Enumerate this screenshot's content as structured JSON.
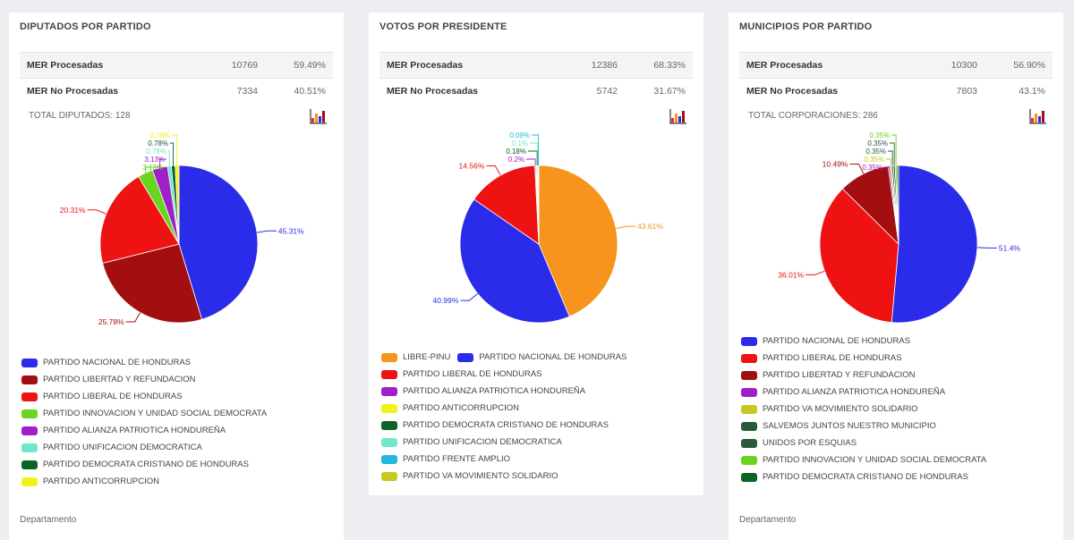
{
  "cards": [
    {
      "title": "DIPUTADOS POR PARTIDO",
      "mer": [
        {
          "label": "MER Procesadas",
          "count": "10769",
          "pct": "59.49%"
        },
        {
          "label": "MER No Procesadas",
          "count": "7334",
          "pct": "40.51%"
        }
      ],
      "total_label": "TOTAL DIPUTADOS: 128",
      "dept_label": "Departamento",
      "icon": "bar-chart-icon"
    },
    {
      "title": "VOTOS POR PRESIDENTE",
      "mer": [
        {
          "label": "MER Procesadas",
          "count": "12386",
          "pct": "68.33%"
        },
        {
          "label": "MER No Procesadas",
          "count": "5742",
          "pct": "31.67%"
        }
      ],
      "total_label": "",
      "dept_label": "",
      "icon": "bar-chart-icon"
    },
    {
      "title": "MUNICIPIOS POR PARTIDO",
      "mer": [
        {
          "label": "MER Procesadas",
          "count": "10300",
          "pct": "56.90%"
        },
        {
          "label": "MER No Procesadas",
          "count": "7803",
          "pct": "43.1%"
        }
      ],
      "total_label": "TOTAL CORPORACIONES: 286",
      "dept_label": "Departamento",
      "icon": "bar-chart-icon"
    }
  ],
  "chart_data": [
    {
      "type": "pie",
      "title": "",
      "slices": [
        {
          "name": "PARTIDO NACIONAL DE HONDURAS",
          "value": 45.31,
          "label": "45.31%",
          "color": "#2b2bea"
        },
        {
          "name": "PARTIDO LIBERTAD Y REFUNDACION",
          "value": 25.78,
          "label": "25.78%",
          "color": "#a30f10"
        },
        {
          "name": "PARTIDO LIBERAL DE HONDURAS",
          "value": 20.31,
          "label": "20.31%",
          "color": "#ee1212"
        },
        {
          "name": "PARTIDO INNOVACION Y UNIDAD SOCIAL DEMOCRATA",
          "value": 3.13,
          "label": "3.13%",
          "color": "#6ad41f"
        },
        {
          "name": "PARTIDO ALIANZA PATRIOTICA HONDUREÑA",
          "value": 3.13,
          "label": "3.13%",
          "color": "#a020c8"
        },
        {
          "name": "PARTIDO UNIFICACION DEMOCRATICA",
          "value": 0.78,
          "label": "0.78%",
          "color": "#6ee8c8"
        },
        {
          "name": "PARTIDO DEMOCRATA CRISTIANO DE HONDURAS",
          "value": 0.78,
          "label": "0.78%",
          "color": "#0c6424"
        },
        {
          "name": "PARTIDO ANTICORRUPCION",
          "value": 0.78,
          "label": "0.78%",
          "color": "#f2f21a"
        }
      ],
      "legend_layout": [
        [
          0
        ],
        [
          1
        ],
        [
          2
        ],
        [
          3
        ],
        [
          4
        ],
        [
          5
        ],
        [
          6
        ],
        [
          7
        ]
      ]
    },
    {
      "type": "pie",
      "title": "",
      "slices": [
        {
          "name": "LIBRE-PINU",
          "value": 43.61,
          "label": "43.61%",
          "color": "#f7941d"
        },
        {
          "name": "PARTIDO NACIONAL DE HONDURAS",
          "value": 40.99,
          "label": "40.99%",
          "color": "#2b2bea"
        },
        {
          "name": "PARTIDO LIBERAL DE HONDURAS",
          "value": 14.56,
          "label": "14.56%",
          "color": "#ee1212"
        },
        {
          "name": "PARTIDO ALIANZA PATRIOTICA HONDUREÑA",
          "value": 0.2,
          "label": "0.2%",
          "color": "#a020c8"
        },
        {
          "name": "PARTIDO ANTICORRUPCION",
          "value": 0.18,
          "label": "",
          "color": "#f2f21a"
        },
        {
          "name": "PARTIDO DEMOCRATA CRISTIANO DE HONDURAS",
          "value": 0.18,
          "label": "0.18%",
          "color": "#0c6424"
        },
        {
          "name": "PARTIDO UNIFICACION DEMOCRATICA",
          "value": 0.1,
          "label": "0.1%",
          "color": "#6ee8c8"
        },
        {
          "name": "PARTIDO FRENTE AMPLIO",
          "value": 0.09,
          "label": "0.09%",
          "color": "#22b8e0"
        },
        {
          "name": "PARTIDO VA MOVIMIENTO SOLIDARIO",
          "value": 0.05,
          "label": "",
          "color": "#c8c820"
        }
      ],
      "legend_layout": [
        [
          0,
          1
        ],
        [
          2
        ],
        [
          3
        ],
        [
          4
        ],
        [
          5
        ],
        [
          6
        ],
        [
          7
        ],
        [
          8
        ]
      ]
    },
    {
      "type": "pie",
      "title": "",
      "slices": [
        {
          "name": "PARTIDO NACIONAL DE HONDURAS",
          "value": 51.4,
          "label": "51.4%",
          "color": "#2b2bea"
        },
        {
          "name": "PARTIDO LIBERAL DE HONDURAS",
          "value": 36.01,
          "label": "36.01%",
          "color": "#ee1212"
        },
        {
          "name": "PARTIDO LIBERTAD Y REFUNDACION",
          "value": 10.49,
          "label": "10.49%",
          "color": "#a30f10"
        },
        {
          "name": "PARTIDO ALIANZA PATRIOTICA HONDUREÑA",
          "value": 0.35,
          "label": "0.35%",
          "color": "#a020c8"
        },
        {
          "name": "PARTIDO VA MOVIMIENTO SOLIDARIO",
          "value": 0.35,
          "label": "0.35%",
          "color": "#c8c820"
        },
        {
          "name": "SALVEMOS JUNTOS NUESTRO MUNICIPIO",
          "value": 0.35,
          "label": "0.35%",
          "color": "#2a5a3a"
        },
        {
          "name": "UNIDOS POR ESQUIAS",
          "value": 0.35,
          "label": "0.35%",
          "color": "#2a5a3a"
        },
        {
          "name": "PARTIDO INNOVACION Y UNIDAD SOCIAL DEMOCRATA",
          "value": 0.35,
          "label": "0.35%",
          "color": "#6ad41f"
        },
        {
          "name": "PARTIDO DEMOCRATA CRISTIANO DE HONDURAS",
          "value": 0.35,
          "label": "",
          "color": "#0c6424"
        }
      ],
      "legend_layout": [
        [
          0
        ],
        [
          1
        ],
        [
          2
        ],
        [
          3
        ],
        [
          4
        ],
        [
          5
        ],
        [
          6
        ],
        [
          7
        ],
        [
          8
        ]
      ]
    }
  ]
}
